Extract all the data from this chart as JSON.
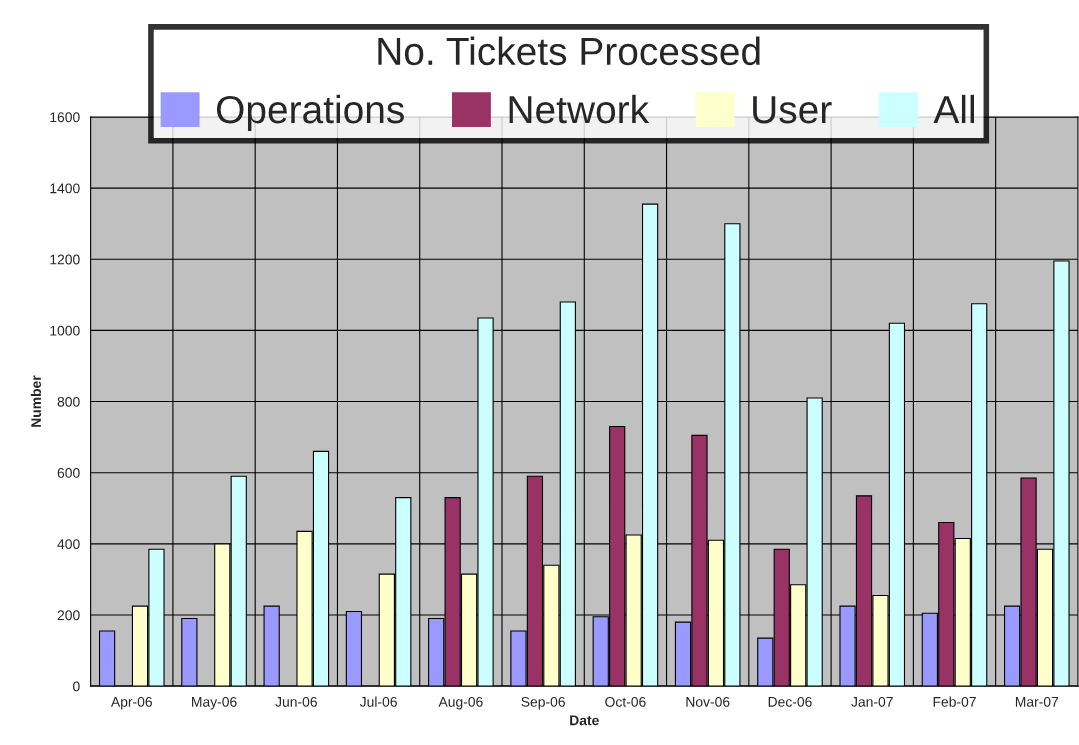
{
  "chart_data": {
    "type": "bar",
    "legend_title": "No. Tickets Processed",
    "xlabel": "Date",
    "ylabel": "Number",
    "categories": [
      "Apr-06",
      "May-06",
      "Jun-06",
      "Jul-06",
      "Aug-06",
      "Sep-06",
      "Oct-06",
      "Nov-06",
      "Dec-06",
      "Jan-07",
      "Feb-07",
      "Mar-07"
    ],
    "series": [
      {
        "name": "Operations",
        "color": "#9999ff",
        "values": [
          155,
          190,
          225,
          210,
          190,
          155,
          195,
          180,
          135,
          225,
          205,
          225
        ]
      },
      {
        "name": "Network",
        "color": "#993366",
        "values": [
          null,
          null,
          null,
          null,
          530,
          590,
          730,
          705,
          385,
          535,
          460,
          585
        ]
      },
      {
        "name": "User",
        "color": "#ffffcc",
        "values": [
          225,
          400,
          435,
          315,
          315,
          340,
          425,
          410,
          285,
          255,
          415,
          385
        ]
      },
      {
        "name": "All",
        "color": "#ccffff",
        "values": [
          385,
          590,
          660,
          530,
          1035,
          1080,
          1355,
          1300,
          810,
          1020,
          1075,
          1195
        ]
      }
    ],
    "ylim": [
      0,
      1600
    ],
    "yticks": [
      0,
      200,
      400,
      600,
      800,
      1000,
      1200,
      1400,
      1600
    ],
    "grid": true,
    "legend": "top"
  }
}
